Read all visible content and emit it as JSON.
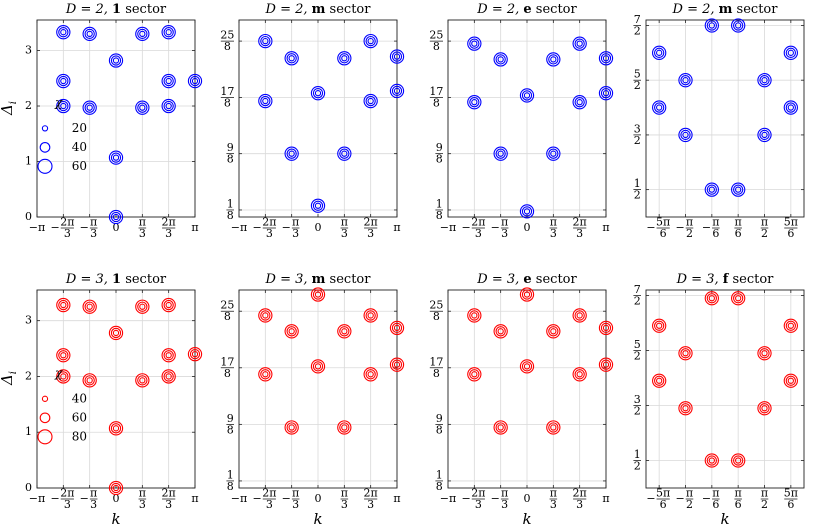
{
  "figure": {
    "x_tick_labels": [
      "−π",
      "−2π/3",
      "−π/3",
      "0",
      "π/3",
      "2π/3",
      "π"
    ],
    "x_tick_labels_f": [
      "−5π/6",
      "−π/2",
      "−π/6",
      "π/6",
      "π/2",
      "5π/6"
    ],
    "y_tick_labels_numeric": [
      "0",
      "1",
      "2",
      "3"
    ],
    "y_tick_labels_m": [
      "1/8",
      "9/8",
      "17/8",
      "25/8"
    ],
    "y_tick_labels_f": [
      "1/2",
      "3/2",
      "5/2",
      "7/2"
    ],
    "xlabel": "k",
    "ylabel": "Δ_i",
    "ylabel_main": "Δ",
    "ylabel_sub": "i"
  },
  "chart_data": [
    {
      "id": "p1",
      "type": "scatter",
      "D": 2,
      "sector": "1",
      "title_pre": "D = 2, ",
      "title_bold": "1",
      "title_post": " sector",
      "color": "#0000ff",
      "xlim": [
        -3.1416,
        3.1416
      ],
      "ylim": [
        0,
        3.55
      ],
      "ytick_style": "numeric",
      "legend": {
        "symbol": "χ",
        "entries": [
          "20",
          "40",
          "60"
        ]
      },
      "x": [
        -2.0944,
        -2.0944,
        -2.0944,
        -1.0472,
        -1.0472,
        0,
        0,
        0,
        1.0472,
        1.0472,
        2.0944,
        2.0944,
        2.0944,
        3.1416
      ],
      "y": [
        3.33,
        2.45,
        2.0,
        3.3,
        1.97,
        2.82,
        1.07,
        0.0,
        3.3,
        1.97,
        3.33,
        2.45,
        2.0,
        2.45
      ]
    },
    {
      "id": "p2",
      "type": "scatter",
      "D": 2,
      "sector": "m",
      "title_pre": "D = 2, ",
      "title_bold": "m",
      "title_post": " sector",
      "color": "#0000ff",
      "xlim": [
        -3.1416,
        3.1416
      ],
      "ylim": [
        0,
        3.5
      ],
      "ytick_style": "m",
      "x": [
        -2.0944,
        -2.0944,
        -1.0472,
        -1.0472,
        0,
        0,
        1.0472,
        1.0472,
        2.0944,
        2.0944,
        3.1416,
        3.1416
      ],
      "y": [
        3.125,
        2.06,
        2.82,
        1.125,
        2.2,
        0.2,
        2.82,
        1.125,
        3.125,
        2.06,
        2.85,
        2.24
      ]
    },
    {
      "id": "p3",
      "type": "scatter",
      "D": 2,
      "sector": "e",
      "title_pre": "D = 2, ",
      "title_bold": "e",
      "title_post": " sector",
      "color": "#0000ff",
      "xlim": [
        -3.1416,
        3.1416
      ],
      "ylim": [
        0,
        3.5
      ],
      "ytick_style": "m",
      "x": [
        -2.0944,
        -2.0944,
        -1.0472,
        -1.0472,
        0,
        0,
        1.0472,
        1.0472,
        2.0944,
        2.0944,
        3.1416,
        3.1416
      ],
      "y": [
        3.08,
        2.04,
        2.8,
        1.125,
        2.16,
        0.1,
        2.8,
        1.125,
        3.08,
        2.04,
        2.82,
        2.2
      ]
    },
    {
      "id": "p4",
      "type": "scatter",
      "D": 2,
      "sector": "m",
      "title_pre": "D = 2, ",
      "title_bold": "m",
      "title_post": " sector",
      "color": "#0000ff",
      "xlim": [
        -3.1416,
        3.1416
      ],
      "ylim": [
        0,
        3.6
      ],
      "ytick_style": "f",
      "x": [
        -2.618,
        -2.618,
        -1.5708,
        -1.5708,
        -0.5236,
        -0.5236,
        0.5236,
        0.5236,
        1.5708,
        1.5708,
        2.618,
        2.618
      ],
      "y": [
        3.0,
        2.0,
        2.5,
        1.5,
        3.5,
        0.5,
        3.5,
        0.5,
        2.5,
        1.5,
        3.0,
        2.0
      ]
    },
    {
      "id": "p5",
      "type": "scatter",
      "D": 3,
      "sector": "1",
      "title_pre": "D = 3, ",
      "title_bold": "1",
      "title_post": " sector",
      "color": "#ff0000",
      "xlim": [
        -3.1416,
        3.1416
      ],
      "ylim": [
        0,
        3.55
      ],
      "ytick_style": "numeric",
      "legend": {
        "symbol": "χ",
        "entries": [
          "40",
          "60",
          "80"
        ]
      },
      "x": [
        -2.0944,
        -2.0944,
        -2.0944,
        -1.0472,
        -1.0472,
        0,
        0,
        0,
        1.0472,
        1.0472,
        2.0944,
        2.0944,
        2.0944,
        3.1416
      ],
      "y": [
        3.28,
        2.38,
        2.0,
        3.25,
        1.93,
        2.78,
        1.07,
        0.0,
        3.25,
        1.93,
        3.28,
        2.38,
        2.0,
        2.4
      ]
    },
    {
      "id": "p6",
      "type": "scatter",
      "D": 3,
      "sector": "m",
      "title_pre": "D = 3, ",
      "title_bold": "m",
      "title_post": " sector",
      "color": "#ff0000",
      "xlim": [
        -3.1416,
        3.1416
      ],
      "ylim": [
        0,
        3.5
      ],
      "ytick_style": "m",
      "x": [
        -2.0944,
        -2.0944,
        -1.0472,
        -1.0472,
        0,
        0,
        1.0472,
        1.0472,
        2.0944,
        2.0944,
        3.1416,
        3.1416
      ],
      "y": [
        3.05,
        2.01,
        2.77,
        1.07,
        3.42,
        2.15,
        2.77,
        1.07,
        3.05,
        2.01,
        2.83,
        2.18
      ]
    },
    {
      "id": "p7",
      "type": "scatter",
      "D": 3,
      "sector": "e",
      "title_pre": "D = 3, ",
      "title_bold": "e",
      "title_post": " sector",
      "color": "#ff0000",
      "xlim": [
        -3.1416,
        3.1416
      ],
      "ylim": [
        0,
        3.5
      ],
      "ytick_style": "m",
      "x": [
        -2.0944,
        -2.0944,
        -1.0472,
        -1.0472,
        0,
        0,
        1.0472,
        1.0472,
        2.0944,
        2.0944,
        3.1416,
        3.1416
      ],
      "y": [
        3.05,
        2.01,
        2.77,
        1.07,
        3.42,
        2.15,
        2.77,
        1.07,
        3.05,
        2.01,
        2.83,
        2.18
      ]
    },
    {
      "id": "p8",
      "type": "scatter",
      "D": 3,
      "sector": "f",
      "title_pre": "D = 3, ",
      "title_bold": "f",
      "title_post": " sector",
      "color": "#ff0000",
      "xlim": [
        -3.1416,
        3.1416
      ],
      "ylim": [
        0,
        3.6
      ],
      "ytick_style": "f",
      "x": [
        -2.618,
        -2.618,
        -1.5708,
        -1.5708,
        -0.5236,
        -0.5236,
        0.5236,
        0.5236,
        1.5708,
        1.5708,
        2.618,
        2.618
      ],
      "y": [
        2.95,
        1.95,
        2.45,
        1.45,
        3.45,
        0.5,
        3.45,
        0.5,
        2.45,
        1.45,
        2.95,
        1.95
      ]
    }
  ]
}
